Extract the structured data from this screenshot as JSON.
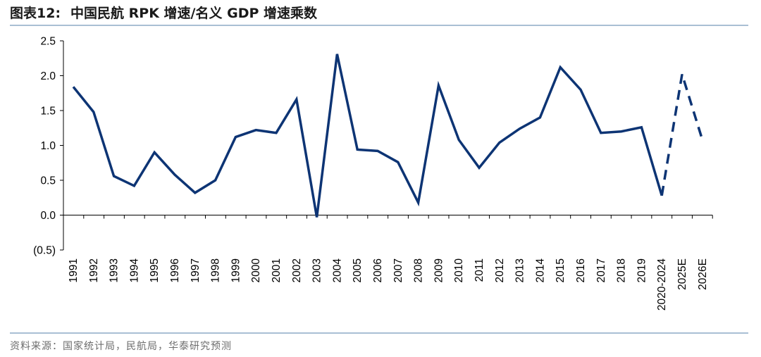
{
  "figure": {
    "label": "图表12:",
    "title": "中国民航 RPK 增速/名义 GDP 增速乘数",
    "source": "资料来源：国家统计局，民航局，华泰研究预测"
  },
  "colors": {
    "line": "#0d3474",
    "rule": "#a9bfd4",
    "axis": "#000000"
  },
  "chart_data": {
    "type": "line",
    "title": "中国民航 RPK 增速/名义 GDP 增速乘数",
    "xlabel": "",
    "ylabel": "",
    "ylim": [
      -0.5,
      2.5
    ],
    "yticks": [
      -0.5,
      0,
      0.5,
      1.0,
      1.5,
      2.0,
      2.5
    ],
    "ytick_labels": [
      "(0.5)",
      "0.0",
      "0.5",
      "1.0",
      "1.5",
      "2.0",
      "2.5"
    ],
    "categories": [
      "1991",
      "1992",
      "1993",
      "1994",
      "1995",
      "1996",
      "1997",
      "1998",
      "1999",
      "2000",
      "2001",
      "2002",
      "2003",
      "2004",
      "2005",
      "2006",
      "2007",
      "2008",
      "2009",
      "2010",
      "2011",
      "2012",
      "2013",
      "2014",
      "2015",
      "2016",
      "2017",
      "2018",
      "2019",
      "2020-2024",
      "2025E",
      "2026E"
    ],
    "series": [
      {
        "name": "RPK增速/名义GDP增速",
        "style": "solid",
        "values": [
          1.84,
          1.48,
          0.56,
          0.42,
          0.9,
          0.58,
          0.32,
          0.5,
          1.12,
          1.22,
          1.18,
          1.66,
          -0.03,
          2.31,
          0.94,
          0.92,
          0.76,
          0.18,
          1.86,
          1.08,
          0.68,
          1.04,
          1.24,
          1.4,
          2.12,
          1.8,
          1.18,
          1.2,
          1.26,
          0.28,
          null,
          null
        ]
      },
      {
        "name": "预测",
        "style": "dashed",
        "values": [
          null,
          null,
          null,
          null,
          null,
          null,
          null,
          null,
          null,
          null,
          null,
          null,
          null,
          null,
          null,
          null,
          null,
          null,
          null,
          null,
          null,
          null,
          null,
          null,
          null,
          null,
          null,
          null,
          null,
          0.28,
          2.02,
          1.08
        ]
      }
    ],
    "grid": false,
    "legend": "none"
  }
}
